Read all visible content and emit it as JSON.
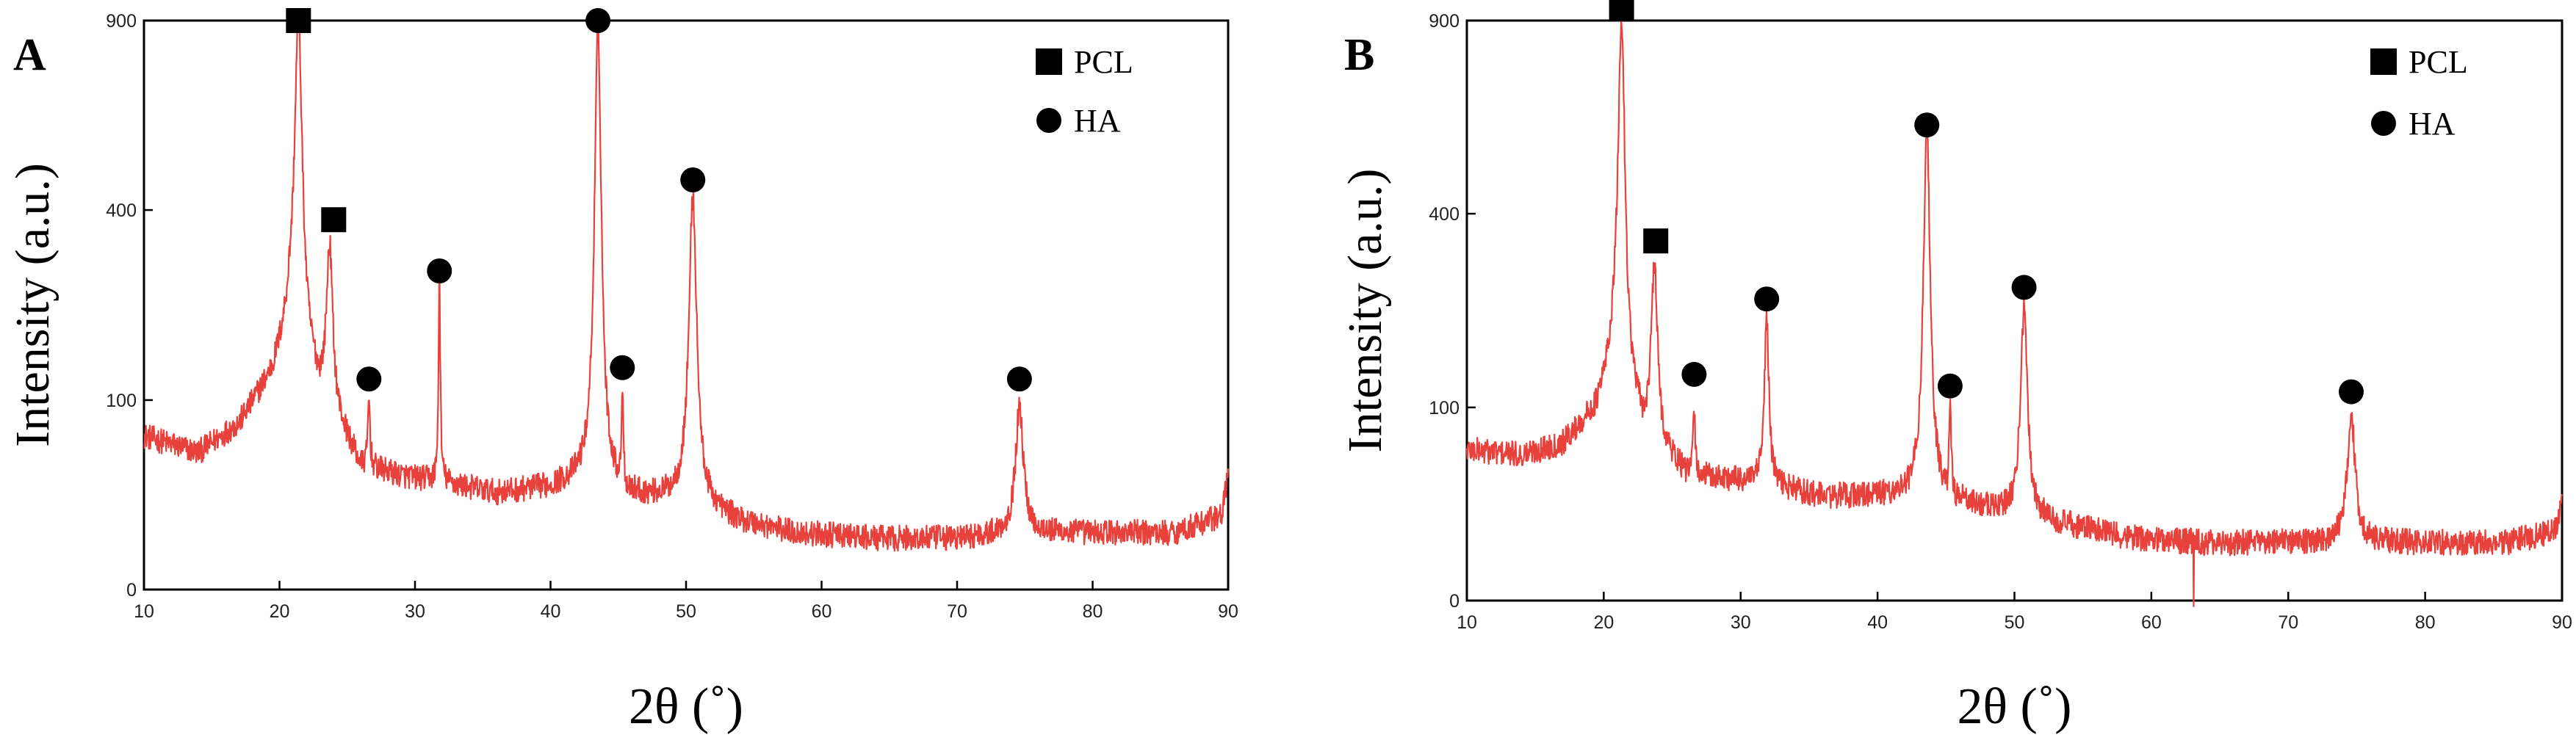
{
  "colors": {
    "trace": "#e8413c",
    "trace_dark": "#7a1e1a",
    "axis": "#000000"
  },
  "chart_data": [
    {
      "panel": "A",
      "type": "line",
      "title": "",
      "xlabel": "2θ (˚)",
      "ylabel": "Intensity  (a.u.)",
      "xlim": [
        10,
        90
      ],
      "x_ticks": [
        10,
        20,
        30,
        40,
        50,
        60,
        70,
        80,
        90
      ],
      "y_ticks": [
        {
          "label": "0",
          "frac": 0.0
        },
        {
          "label": "100",
          "frac": 0.333
        },
        {
          "label": "400",
          "frac": 0.667
        },
        {
          "label": "900",
          "frac": 1.0
        }
      ],
      "baseline": [
        [
          10,
          0.27
        ],
        [
          14,
          0.24
        ],
        [
          17,
          0.29
        ],
        [
          19.5,
          0.38
        ],
        [
          20.8,
          0.47
        ],
        [
          23,
          0.36
        ],
        [
          26,
          0.22
        ],
        [
          29,
          0.2
        ],
        [
          32,
          0.19
        ],
        [
          36,
          0.17
        ],
        [
          40,
          0.18
        ],
        [
          43,
          0.2
        ],
        [
          46,
          0.17
        ],
        [
          50,
          0.16
        ],
        [
          54,
          0.12
        ],
        [
          58,
          0.1
        ],
        [
          64,
          0.09
        ],
        [
          70,
          0.09
        ],
        [
          74,
          0.1
        ],
        [
          76,
          0.1
        ],
        [
          80,
          0.1
        ],
        [
          86,
          0.1
        ],
        [
          89.5,
          0.13
        ],
        [
          90,
          0.2
        ]
      ],
      "peaks": [
        {
          "x": 21.4,
          "height": 1.0,
          "width": 0.45
        },
        {
          "x": 23.7,
          "height": 0.61,
          "width": 0.35
        },
        {
          "x": 26.6,
          "height": 0.34,
          "width": 0.12
        },
        {
          "x": 31.8,
          "height": 0.55,
          "width": 0.1
        },
        {
          "x": 43.5,
          "height": 0.985,
          "width": 0.4
        },
        {
          "x": 45.3,
          "height": 0.36,
          "width": 0.12
        },
        {
          "x": 50.5,
          "height": 0.69,
          "width": 0.45
        },
        {
          "x": 74.6,
          "height": 0.32,
          "width": 0.45
        }
      ],
      "markers": [
        {
          "x": 21.4,
          "frac": 1.0,
          "shape": "square"
        },
        {
          "x": 24.0,
          "frac": 0.65,
          "shape": "square"
        },
        {
          "x": 26.6,
          "frac": 0.37,
          "shape": "circle"
        },
        {
          "x": 31.8,
          "frac": 0.56,
          "shape": "circle"
        },
        {
          "x": 43.5,
          "frac": 1.0,
          "shape": "circle"
        },
        {
          "x": 45.3,
          "frac": 0.39,
          "shape": "circle"
        },
        {
          "x": 50.5,
          "frac": 0.72,
          "shape": "circle"
        },
        {
          "x": 74.6,
          "frac": 0.37,
          "shape": "circle"
        }
      ],
      "legend": [
        {
          "shape": "square",
          "label": "PCL"
        },
        {
          "shape": "circle",
          "label": "HA"
        }
      ]
    },
    {
      "panel": "B",
      "type": "line",
      "title": "",
      "xlabel": "2θ (˚)",
      "ylabel": "Intensity  (a.u.)",
      "xlim": [
        10,
        90
      ],
      "x_ticks": [
        10,
        20,
        30,
        40,
        50,
        60,
        70,
        80,
        90
      ],
      "y_ticks": [
        {
          "label": "0",
          "frac": 0.0
        },
        {
          "label": "100",
          "frac": 0.333
        },
        {
          "label": "400",
          "frac": 0.667
        },
        {
          "label": "900",
          "frac": 1.0
        }
      ],
      "baseline": [
        [
          10,
          0.26
        ],
        [
          14,
          0.25
        ],
        [
          17,
          0.27
        ],
        [
          19.5,
          0.33
        ],
        [
          20.8,
          0.42
        ],
        [
          23,
          0.3
        ],
        [
          26,
          0.22
        ],
        [
          29,
          0.21
        ],
        [
          32,
          0.2
        ],
        [
          36,
          0.18
        ],
        [
          40,
          0.18
        ],
        [
          43,
          0.18
        ],
        [
          46,
          0.17
        ],
        [
          50,
          0.15
        ],
        [
          54,
          0.13
        ],
        [
          58,
          0.11
        ],
        [
          64,
          0.1
        ],
        [
          70,
          0.1
        ],
        [
          74,
          0.1
        ],
        [
          76,
          0.1
        ],
        [
          80,
          0.1
        ],
        [
          86,
          0.1
        ],
        [
          89.5,
          0.12
        ],
        [
          90,
          0.17
        ]
      ],
      "peaks": [
        {
          "x": 21.3,
          "height": 1.0,
          "width": 0.4
        },
        {
          "x": 23.7,
          "height": 0.58,
          "width": 0.35
        },
        {
          "x": 26.6,
          "height": 0.33,
          "width": 0.12
        },
        {
          "x": 31.9,
          "height": 0.49,
          "width": 0.25
        },
        {
          "x": 43.6,
          "height": 0.81,
          "width": 0.4
        },
        {
          "x": 45.3,
          "height": 0.33,
          "width": 0.15
        },
        {
          "x": 50.7,
          "height": 0.5,
          "width": 0.4
        },
        {
          "x": 74.6,
          "height": 0.32,
          "width": 0.45
        }
      ],
      "markers": [
        {
          "x": 21.3,
          "frac": 1.02,
          "shape": "square"
        },
        {
          "x": 23.8,
          "frac": 0.62,
          "shape": "square"
        },
        {
          "x": 26.6,
          "frac": 0.39,
          "shape": "circle"
        },
        {
          "x": 31.9,
          "frac": 0.52,
          "shape": "circle"
        },
        {
          "x": 43.6,
          "frac": 0.82,
          "shape": "circle"
        },
        {
          "x": 45.3,
          "frac": 0.37,
          "shape": "circle"
        },
        {
          "x": 50.7,
          "frac": 0.54,
          "shape": "circle"
        },
        {
          "x": 74.6,
          "frac": 0.36,
          "shape": "circle"
        }
      ],
      "legend": [
        {
          "shape": "square",
          "label": "PCL"
        },
        {
          "shape": "circle",
          "label": "HA"
        }
      ]
    }
  ]
}
